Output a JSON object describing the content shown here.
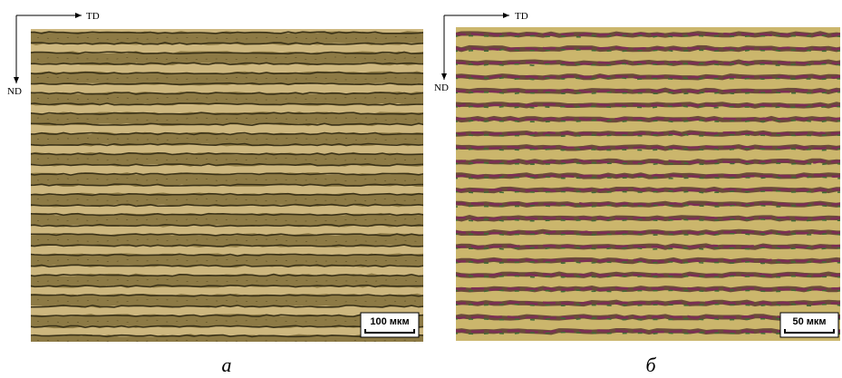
{
  "panels": [
    {
      "axis_x": "TD",
      "axis_y": "ND",
      "scale_bar": "100 мкм",
      "caption": "а"
    },
    {
      "axis_x": "TD",
      "axis_y": "ND",
      "scale_bar": "50 мкм",
      "caption": "б"
    }
  ]
}
